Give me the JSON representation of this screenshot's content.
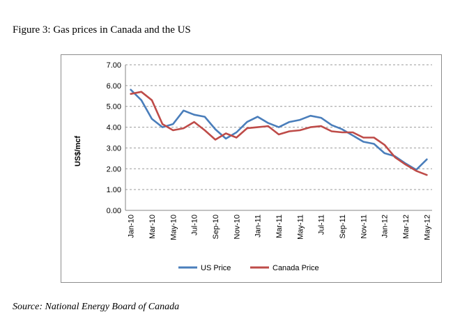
{
  "figure": {
    "title": "Figure 3: Gas prices in Canada and the US",
    "source": "Source: National Energy Board of Canada"
  },
  "chart_data": {
    "type": "line",
    "ylabel": "US$/mcf",
    "ylim": [
      0,
      7
    ],
    "yticks": [
      "0.00",
      "1.00",
      "2.00",
      "3.00",
      "4.00",
      "5.00",
      "6.00",
      "7.00"
    ],
    "grid": "horizontal dashed",
    "legend_position": "bottom",
    "x": [
      "Jan-10",
      "Feb-10",
      "Mar-10",
      "Apr-10",
      "May-10",
      "Jun-10",
      "Jul-10",
      "Aug-10",
      "Sep-10",
      "Oct-10",
      "Nov-10",
      "Dec-10",
      "Jan-11",
      "Feb-11",
      "Mar-11",
      "Apr-11",
      "May-11",
      "Jun-11",
      "Jul-11",
      "Aug-11",
      "Sep-11",
      "Oct-11",
      "Nov-11",
      "Dec-11",
      "Jan-12",
      "Feb-12",
      "Mar-12",
      "Apr-12",
      "May-12"
    ],
    "x_tick_labels": [
      "Jan-10",
      "Mar-10",
      "May-10",
      "Jul-10",
      "Sep-10",
      "Nov-10",
      "Jan-11",
      "Mar-11",
      "May-11",
      "Jul-11",
      "Sep-11",
      "Nov-11",
      "Jan-12",
      "Mar-12",
      "May-12"
    ],
    "series": [
      {
        "name": "US Price",
        "color": "#4a7ebb",
        "values": [
          5.8,
          5.3,
          4.4,
          4.0,
          4.15,
          4.8,
          4.6,
          4.5,
          3.9,
          3.45,
          3.75,
          4.25,
          4.5,
          4.2,
          4.0,
          4.25,
          4.35,
          4.55,
          4.45,
          4.1,
          3.9,
          3.6,
          3.3,
          3.2,
          2.75,
          2.6,
          2.25,
          1.95,
          2.45
        ]
      },
      {
        "name": "Canada Price",
        "color": "#be4b48",
        "values": [
          5.6,
          5.7,
          5.3,
          4.15,
          3.85,
          3.95,
          4.25,
          3.85,
          3.4,
          3.7,
          3.5,
          3.95,
          4.0,
          4.05,
          3.65,
          3.8,
          3.85,
          4.0,
          4.05,
          3.8,
          3.75,
          3.75,
          3.5,
          3.5,
          3.15,
          2.55,
          2.2,
          1.9,
          1.7
        ]
      }
    ]
  }
}
